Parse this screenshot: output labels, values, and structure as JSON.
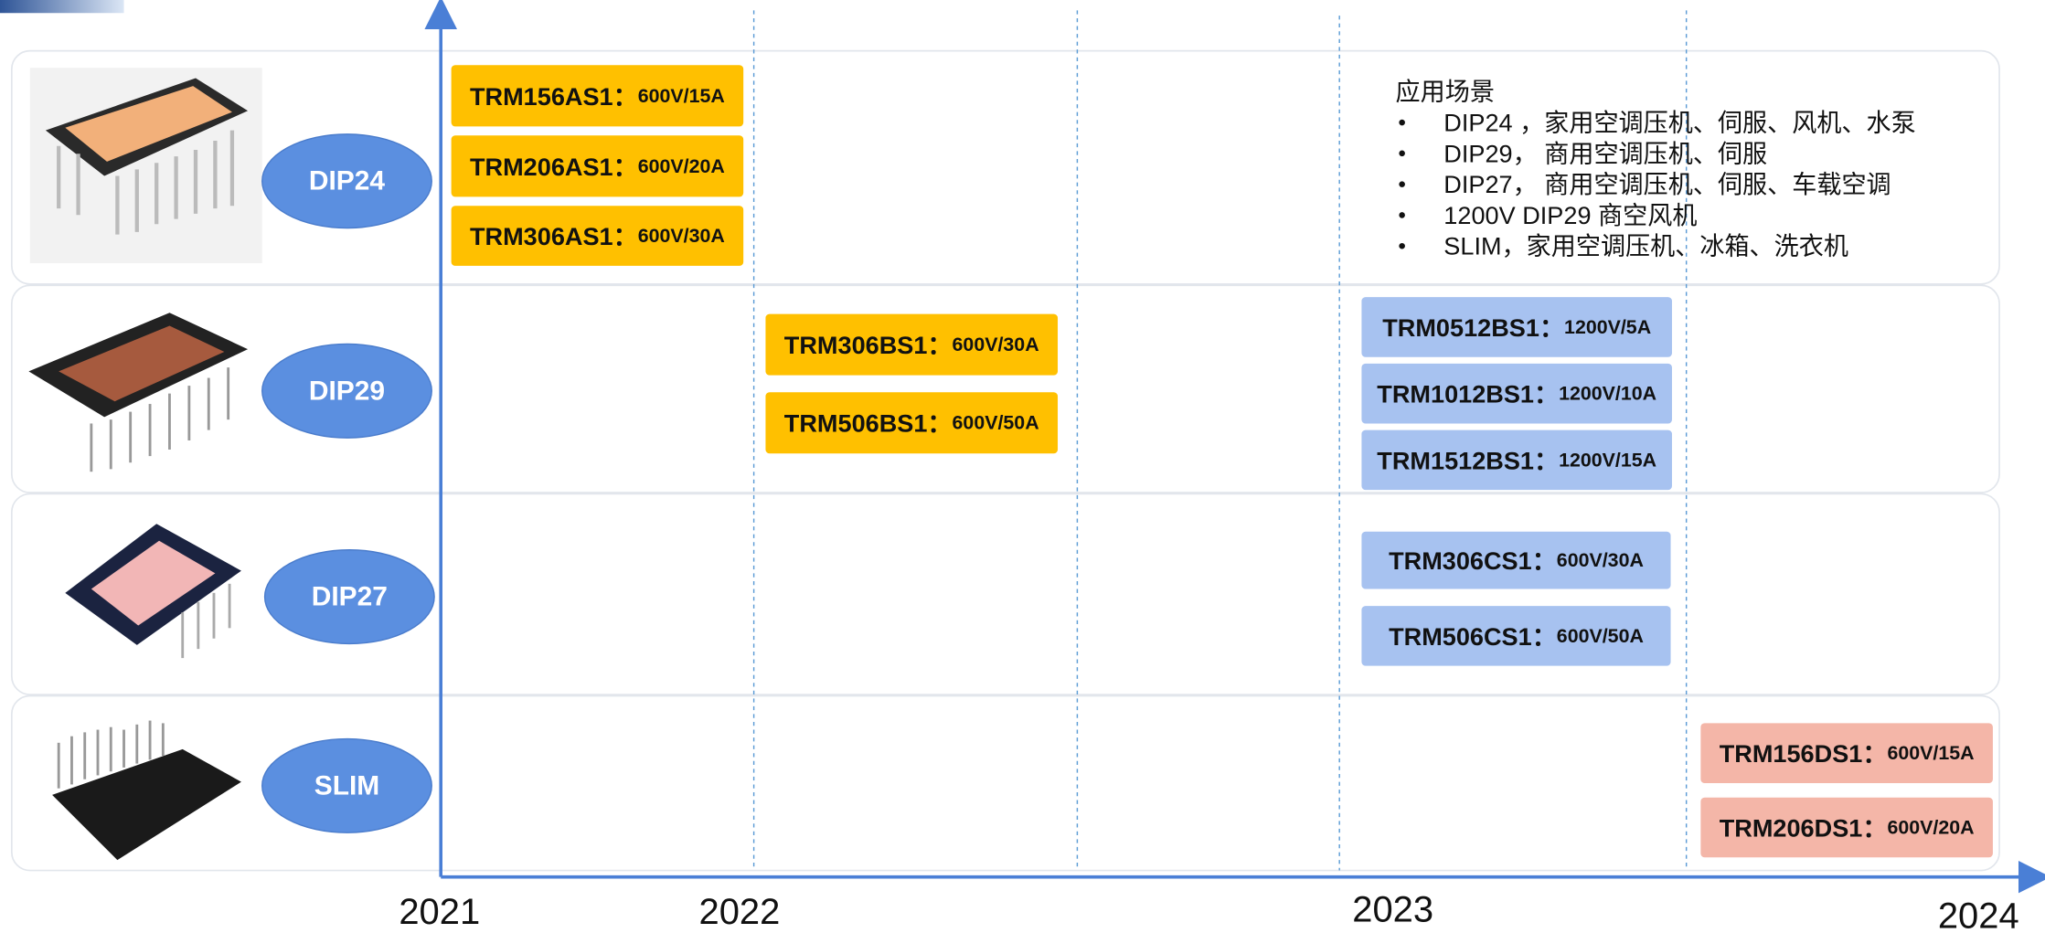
{
  "years": [
    "2021",
    "2022",
    "2023",
    "2024"
  ],
  "rows": [
    {
      "label": "DIP24",
      "products": [
        {
          "name": "TRM156AS1：",
          "spec": "600V/15A",
          "color": "#ffc000"
        },
        {
          "name": "TRM206AS1：",
          "spec": "600V/20A",
          "color": "#ffc000"
        },
        {
          "name": "TRM306AS1：",
          "spec": "600V/30A",
          "color": "#ffc000"
        }
      ]
    },
    {
      "label": "DIP29",
      "products": [
        {
          "name": "TRM306BS1：",
          "spec": "600V/30A",
          "color": "#ffc000"
        },
        {
          "name": "TRM506BS1：",
          "spec": "600V/50A",
          "color": "#ffc000"
        },
        {
          "name": "TRM0512BS1：",
          "spec": "1200V/5A",
          "color": "#a7c2f0"
        },
        {
          "name": "TRM1012BS1：",
          "spec": "1200V/10A",
          "color": "#a7c2f0"
        },
        {
          "name": "TRM1512BS1：",
          "spec": "1200V/15A",
          "color": "#a7c2f0"
        }
      ]
    },
    {
      "label": "DIP27",
      "products": [
        {
          "name": "TRM306CS1：",
          "spec": "600V/30A",
          "color": "#a7c2f0"
        },
        {
          "name": "TRM506CS1：",
          "spec": "600V/50A",
          "color": "#a7c2f0"
        }
      ]
    },
    {
      "label": "SLIM",
      "products": [
        {
          "name": "TRM156DS1：",
          "spec": "600V/15A",
          "color": "#f4b6a8"
        },
        {
          "name": "TRM206DS1：",
          "spec": "600V/20A",
          "color": "#f4b6a8"
        }
      ]
    }
  ],
  "applications": {
    "title": "应用场景",
    "items": [
      "DIP24 ，家用空调压机、伺服、风机、水泵",
      "DIP29， 商用空调压机、伺服",
      "DIP27， 商用空调压机、伺服、车载空调",
      "1200V DIP29 商空风机",
      "SLIM，家用空调压机、冰箱、洗衣机"
    ]
  }
}
